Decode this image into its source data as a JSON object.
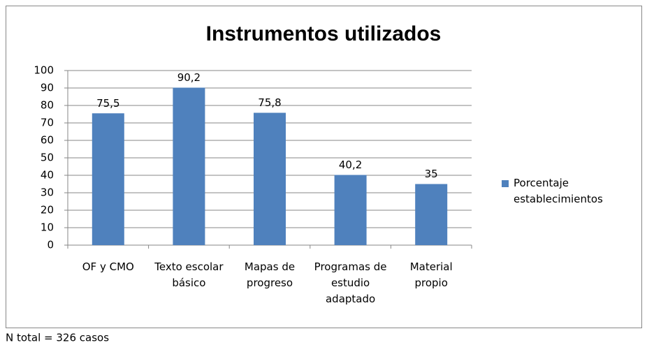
{
  "chart_data": {
    "type": "bar",
    "title": "Instrumentos utilizados",
    "categories": [
      "OF y CMO",
      "Texto escolar básico",
      "Mapas de progreso",
      "Programas de estudio adaptado",
      "Material propio"
    ],
    "series": [
      {
        "name": "Porcentaje establecimientos",
        "color": "#4f81bd",
        "values": [
          75.5,
          90.2,
          75.8,
          40.2,
          35
        ],
        "value_labels": [
          "75,5",
          "90,2",
          "75,8",
          "40,2",
          "35"
        ]
      }
    ],
    "ylim": [
      0,
      100
    ],
    "yticks": [
      0,
      10,
      20,
      30,
      40,
      50,
      60,
      70,
      80,
      90,
      100
    ],
    "grid": true,
    "legend": "right"
  },
  "footnote": "N total = 326 casos"
}
